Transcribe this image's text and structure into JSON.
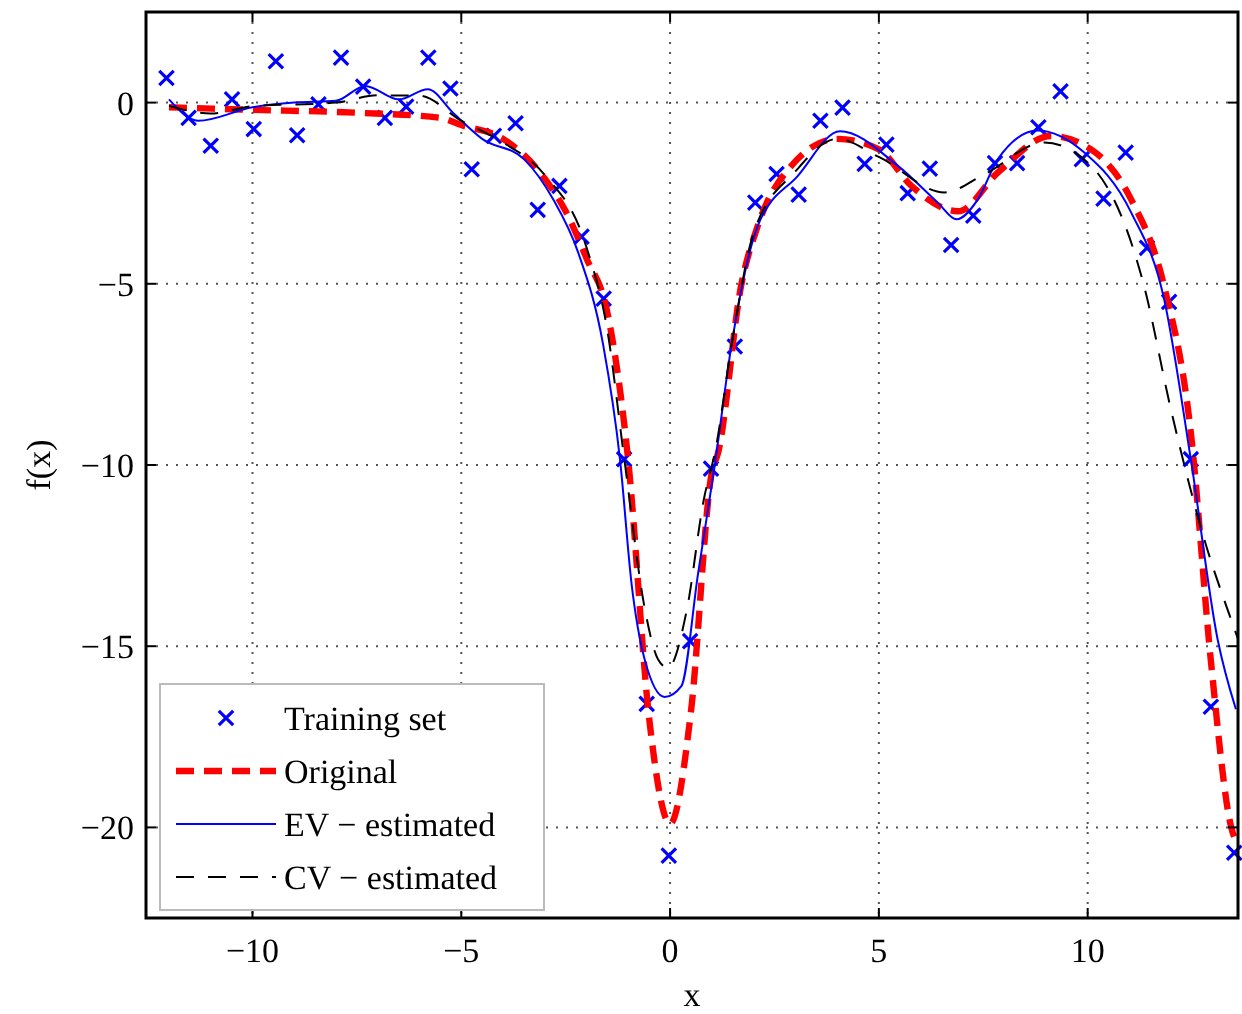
{
  "chart_data": {
    "type": "line",
    "xlabel": "x",
    "ylabel": "f(x)",
    "xlim": [
      -12.55,
      13.6
    ],
    "ylim": [
      -22.5,
      2.5
    ],
    "xticks": [
      -10,
      -5,
      0,
      5,
      10
    ],
    "yticks": [
      -20,
      -15,
      -10,
      -5,
      0
    ],
    "grid": true,
    "legend": "bottom left",
    "series": [
      {
        "name": "Training set",
        "type": "scatter",
        "marker": "cross",
        "color": "#0000ff",
        "x": [
          -12.06,
          -11.53,
          -11.0,
          -10.49,
          -9.97,
          -9.44,
          -8.93,
          -8.42,
          -7.88,
          -7.35,
          -6.83,
          -6.32,
          -5.79,
          -5.26,
          -4.75,
          -4.22,
          -3.7,
          -3.17,
          -2.65,
          -2.12,
          -1.59,
          -1.1,
          -0.56,
          -0.03,
          0.48,
          0.98,
          1.55,
          2.04,
          2.55,
          3.08,
          3.6,
          4.13,
          4.66,
          5.18,
          5.69,
          6.22,
          6.73,
          7.26,
          7.78,
          8.31,
          8.82,
          9.35,
          9.86,
          10.38,
          10.91,
          11.42,
          11.95,
          12.47,
          12.95,
          13.51
        ],
        "values": [
          0.68,
          -0.42,
          -1.19,
          0.09,
          -0.73,
          1.14,
          -0.9,
          -0.05,
          1.24,
          0.44,
          -0.42,
          -0.11,
          1.24,
          0.39,
          -1.84,
          -0.92,
          -0.57,
          -2.96,
          -2.3,
          -3.7,
          -5.41,
          -9.84,
          -16.59,
          -20.78,
          -14.86,
          -10.1,
          -6.73,
          -2.76,
          -1.97,
          -2.54,
          -0.5,
          -0.14,
          -1.69,
          -1.16,
          -2.5,
          -1.82,
          -3.93,
          -3.12,
          -1.67,
          -1.67,
          -0.68,
          0.31,
          -1.56,
          -2.65,
          -1.38,
          -4.01,
          -5.5,
          -9.84,
          -16.67,
          -20.7
        ]
      },
      {
        "name": "Original",
        "line_style": "dashed",
        "color": "#ff0000",
        "x": [
          -12,
          -10,
          -7.5,
          -5.5,
          -5,
          -4,
          -3,
          -2.5,
          -2,
          -1.5,
          -1,
          -0.5,
          0,
          0.5,
          1,
          1.15,
          1.7,
          2.1,
          2.9,
          4,
          5,
          5.78,
          6.9,
          7.85,
          9.12,
          10.08,
          11.04,
          11.83,
          12.47,
          12.95,
          13.43,
          13.6
        ],
        "values": [
          -0.13,
          -0.2,
          -0.28,
          -0.42,
          -0.62,
          -1.0,
          -2.1,
          -3.0,
          -4.3,
          -5.8,
          -9.9,
          -17.0,
          -19.9,
          -16.8,
          -10.2,
          -9.66,
          -5.06,
          -3.4,
          -1.75,
          -1.0,
          -1.29,
          -2.3,
          -3.0,
          -1.93,
          -0.92,
          -1.29,
          -2.67,
          -5.06,
          -9.1,
          -15.4,
          -19.96,
          -20.5
        ]
      },
      {
        "name": "EV − estimated",
        "line_style": "solid",
        "color": "#0000ff",
        "x": [
          -12,
          -11.3,
          -10,
          -9,
          -8,
          -7.3,
          -6.5,
          -5.8,
          -5.2,
          -4.5,
          -3.5,
          -2.8,
          -2.2,
          -1.6,
          -1.2,
          -0.92,
          -0.61,
          -0.13,
          0.27,
          0.67,
          1.07,
          1.47,
          2.1,
          3.06,
          4.07,
          5.45,
          6.41,
          6.86,
          7.37,
          7.85,
          8.8,
          9.92,
          11.04,
          11.83,
          12.47,
          13.11,
          13.55
        ],
        "values": [
          0.09,
          -0.5,
          -0.13,
          0,
          0.05,
          0.46,
          0.09,
          0.37,
          -0.28,
          -1.0,
          -1.56,
          -2.67,
          -4.14,
          -6.7,
          -9.84,
          -13.3,
          -15.36,
          -16.4,
          -16.1,
          -13.0,
          -10.0,
          -6.7,
          -3.4,
          -2.02,
          -0.79,
          -1.74,
          -2.76,
          -3.22,
          -2.67,
          -1.56,
          -0.77,
          -1.38,
          -3.03,
          -5.42,
          -9.84,
          -14.8,
          -16.74
        ]
      },
      {
        "name": "CV − estimated",
        "line_style": "dashed",
        "color": "#000000",
        "x": [
          -12,
          -11,
          -10,
          -8,
          -7,
          -6,
          -5,
          -4,
          -3,
          -2,
          -1.5,
          -1.1,
          -0.6,
          -0.29,
          -0.05,
          0.4,
          0.8,
          1.1,
          1.5,
          2,
          3,
          4,
          5,
          6.57,
          7.5,
          8.96,
          10.08,
          11.35,
          12,
          12.79,
          13.43,
          13.6
        ],
        "values": [
          -0.09,
          -0.3,
          -0.1,
          0,
          0.2,
          0.19,
          -0.5,
          -1.1,
          -2.0,
          -4.0,
          -6.3,
          -9.8,
          -14.0,
          -15.36,
          -15.6,
          -14.0,
          -11.0,
          -9.5,
          -6.5,
          -3.6,
          -1.9,
          -1.0,
          -1.5,
          -2.48,
          -2.0,
          -1.1,
          -1.74,
          -5.06,
          -8.5,
          -12.04,
          -14.25,
          -14.8
        ]
      }
    ]
  }
}
